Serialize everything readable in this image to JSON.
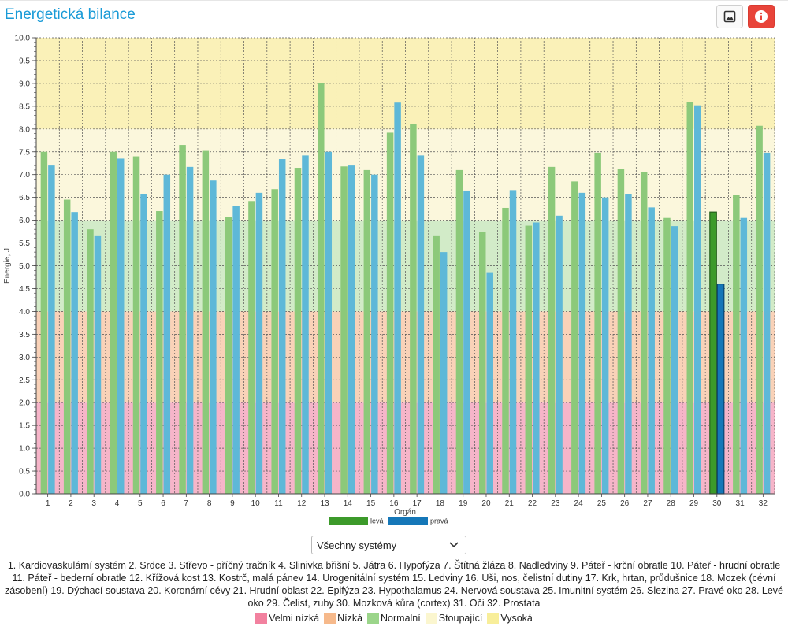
{
  "header": {
    "title": "Energetická bilance",
    "image_icon": "image-icon",
    "info_icon": "info-icon"
  },
  "chart_data": {
    "type": "bar",
    "ylabel": "Energie, J",
    "xlabel": "Orgán",
    "ylim": [
      0,
      10
    ],
    "ytick_step": 0.5,
    "categories": [
      "1",
      "2",
      "3",
      "4",
      "5",
      "6",
      "7",
      "8",
      "9",
      "10",
      "11",
      "12",
      "13",
      "14",
      "15",
      "16",
      "17",
      "18",
      "19",
      "20",
      "21",
      "22",
      "23",
      "24",
      "25",
      "26",
      "27",
      "28",
      "29",
      "30",
      "31",
      "32"
    ],
    "series": [
      {
        "name": "levá",
        "color": "#8cc97a",
        "values": [
          7.5,
          6.45,
          5.8,
          7.5,
          7.4,
          6.2,
          7.65,
          7.52,
          6.07,
          6.42,
          6.68,
          7.15,
          9.0,
          7.18,
          7.1,
          7.92,
          8.1,
          5.65,
          7.1,
          5.75,
          6.27,
          5.88,
          7.17,
          6.85,
          7.48,
          7.13,
          7.05,
          6.05,
          8.6,
          6.18,
          6.55,
          8.07
        ]
      },
      {
        "name": "pravá",
        "color": "#5eb8d8",
        "values": [
          7.2,
          6.18,
          5.65,
          7.35,
          6.58,
          7.0,
          7.17,
          6.87,
          6.32,
          6.6,
          7.34,
          7.42,
          7.5,
          7.2,
          7.0,
          8.58,
          7.42,
          5.3,
          6.65,
          4.86,
          6.66,
          5.95,
          6.1,
          6.6,
          6.5,
          6.58,
          6.28,
          5.87,
          8.52,
          4.6,
          6.05,
          7.48
        ]
      }
    ],
    "highlight": {
      "category": "30",
      "colors": {
        "levá": "#3c9a2a",
        "pravá": "#1577b8"
      }
    },
    "zones": [
      {
        "name": "Velmi nízká",
        "from": 0,
        "to": 2,
        "color": "#f6b5c9"
      },
      {
        "name": "Nízká",
        "from": 2,
        "to": 4,
        "color": "#f9d2b8"
      },
      {
        "name": "Normalní",
        "from": 4,
        "to": 6,
        "color": "#d2ebc8"
      },
      {
        "name": "Stoupající",
        "from": 6,
        "to": 8,
        "color": "#fbf7dc"
      },
      {
        "name": "Vysoká",
        "from": 8,
        "to": 10,
        "color": "#faf1b8"
      }
    ]
  },
  "legend": {
    "series": [
      {
        "label": "levá",
        "color": "#3c9a2a"
      },
      {
        "label": "pravá",
        "color": "#1577b8"
      }
    ],
    "zones": [
      {
        "label": "Velmi nízká",
        "color": "#f2819f"
      },
      {
        "label": "Nízká",
        "color": "#f6b98b"
      },
      {
        "label": "Normalní",
        "color": "#9bd58a"
      },
      {
        "label": "Stoupající",
        "color": "#fbf6cf"
      },
      {
        "label": "Vysoká",
        "color": "#f8ee9a"
      }
    ]
  },
  "system_select": {
    "value": "Všechny systémy"
  },
  "organ_list_text": "1. Kardiovaskulární systém  2. Srdce  3. Střevo - příčný tračník  4. Slinivka břišní  5. Játra  6. Hypofýza  7. Štítná žláza  8. Nadledviny  9. Páteř - krční obratle  10. Páteř - hrudní obratle  11. Páteř - bederní obratle  12. Křížová kost  13. Kostrč, malá pánev  14. Urogenitální systém  15. Ledviny  16. Uši, nos, čelistní dutiny  17. Krk, hrtan, průdušnice  18. Mozek (cévní zásobení)  19. Dýchací soustava  20. Koronární cévy  21. Hrudní oblast  22. Epifýza  23. Hypothalamus  24. Nervová soustava  25. Imunitní systém  26. Slezina  27. Pravé oko  28. Levé oko  29. Čelist, zuby  30. Mozková kůra (cortex)  31. Oči  32. Prostata"
}
